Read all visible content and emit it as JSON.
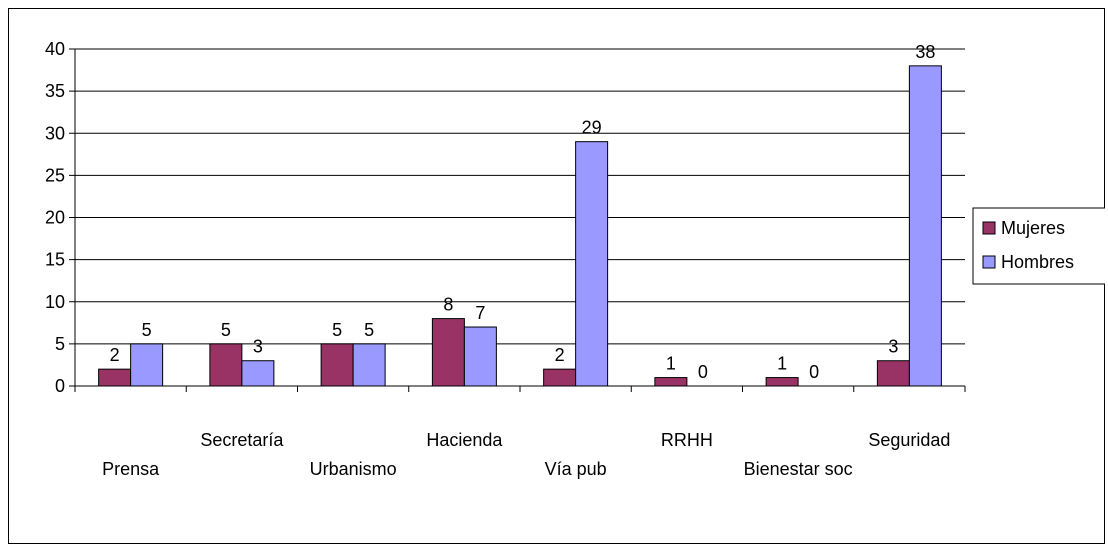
{
  "chart_data": {
    "type": "bar",
    "categories": [
      "Prensa",
      "Secretaría",
      "Urbanismo",
      "Hacienda",
      "Vía pub",
      "RRHH",
      "Bienestar soc",
      "Seguridad"
    ],
    "series": [
      {
        "name": "Mujeres",
        "values": [
          2,
          5,
          5,
          8,
          2,
          1,
          1,
          3
        ],
        "color": "#993366"
      },
      {
        "name": "Hombres",
        "values": [
          5,
          3,
          5,
          7,
          29,
          0,
          0,
          38
        ],
        "color": "#9999ff"
      }
    ],
    "yticks": [
      "0",
      "5",
      "10",
      "15",
      "20",
      "25",
      "30",
      "35",
      "40"
    ],
    "ylim": [
      0,
      40
    ],
    "grid": true,
    "data_labels": true,
    "legend_position": "right",
    "title": "",
    "xlabel": "",
    "ylabel": ""
  }
}
